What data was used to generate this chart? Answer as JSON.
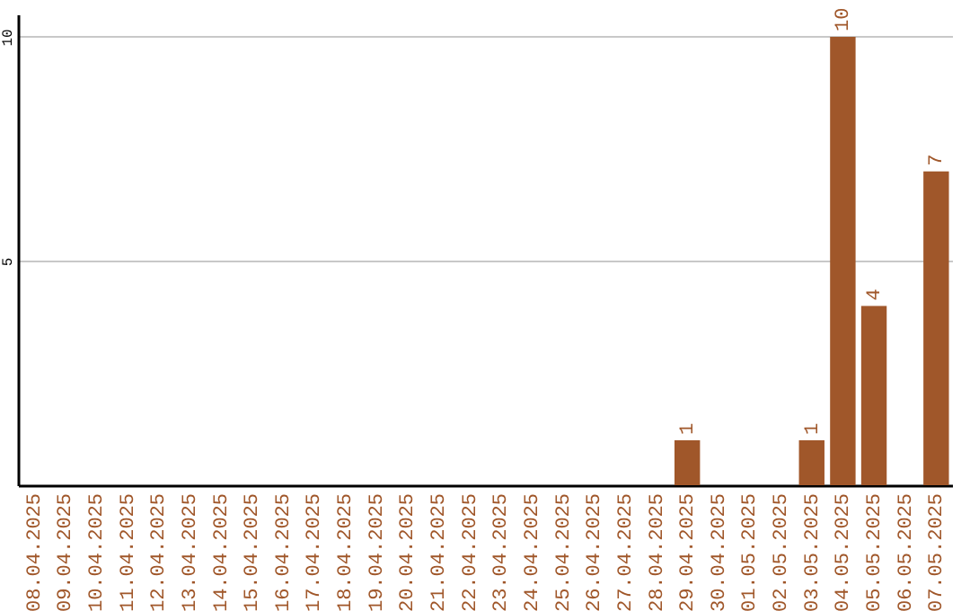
{
  "chart_data": {
    "type": "bar",
    "categories": [
      "08.04.2025",
      "09.04.2025",
      "10.04.2025",
      "11.04.2025",
      "12.04.2025",
      "13.04.2025",
      "14.04.2025",
      "15.04.2025",
      "16.04.2025",
      "17.04.2025",
      "18.04.2025",
      "19.04.2025",
      "20.04.2025",
      "21.04.2025",
      "22.04.2025",
      "23.04.2025",
      "24.04.2025",
      "25.04.2025",
      "26.04.2025",
      "27.04.2025",
      "28.04.2025",
      "29.04.2025",
      "30.04.2025",
      "01.05.2025",
      "02.05.2025",
      "03.05.2025",
      "04.05.2025",
      "05.05.2025",
      "06.05.2025",
      "07.05.2025"
    ],
    "values": [
      0,
      0,
      0,
      0,
      0,
      0,
      0,
      0,
      0,
      0,
      0,
      0,
      0,
      0,
      0,
      0,
      0,
      0,
      0,
      0,
      0,
      1,
      0,
      0,
      0,
      1,
      10,
      4,
      0,
      7
    ],
    "value_labels": [
      null,
      null,
      null,
      null,
      null,
      null,
      null,
      null,
      null,
      null,
      null,
      null,
      null,
      null,
      null,
      null,
      null,
      null,
      null,
      null,
      null,
      "1",
      null,
      null,
      null,
      "1",
      "10",
      "4",
      null,
      "7"
    ],
    "color": "#a0572a",
    "ylim": [
      0,
      10.5
    ],
    "yticks": [
      5,
      10
    ],
    "grid": "y"
  }
}
